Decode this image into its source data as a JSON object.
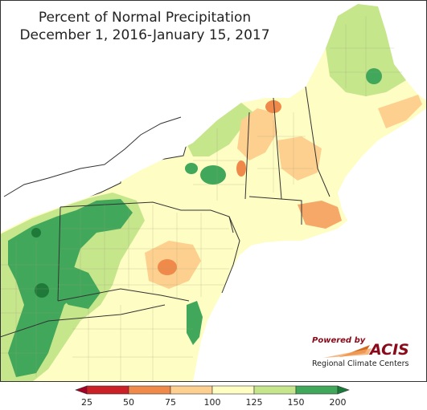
{
  "title": {
    "line1": "Percent of Normal Precipitation",
    "line2": "December 1, 2016-January 15, 2017"
  },
  "logo": {
    "powered_by": "Powered by",
    "brand": "ACIS",
    "org": "Regional Climate Centers"
  },
  "legend": {
    "ticks": [
      "25",
      "50",
      "75",
      "100",
      "125",
      "150",
      "200"
    ],
    "bins": [
      {
        "from": 25,
        "to": 50,
        "color": "#cc2027"
      },
      {
        "from": 50,
        "to": 75,
        "color": "#f08a4b"
      },
      {
        "from": 75,
        "to": 100,
        "color": "#fdd08f"
      },
      {
        "from": 100,
        "to": 125,
        "color": "#ffffc4"
      },
      {
        "from": 125,
        "to": 150,
        "color": "#c6e68c"
      },
      {
        "from": 150,
        "to": 200,
        "color": "#41a85b"
      }
    ],
    "under_color": "#a50026",
    "over_color": "#1a7a3a"
  },
  "colors": {
    "lake": "#ffffff",
    "ocean": "#ffffff",
    "border": "#333333",
    "county": "#9a9a7a"
  }
}
